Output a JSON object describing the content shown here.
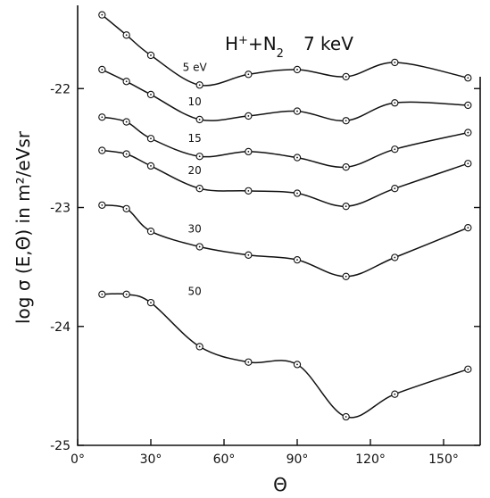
{
  "chart_data": {
    "type": "line",
    "title_main": "H",
    "title_sup": "+",
    "title_mid": "+N",
    "title_sub": "2",
    "title_energy": "7 keV",
    "ylabel": "log σ (E,Θ) in m²/eVsr",
    "xlabel": "Θ",
    "xlim": [
      0,
      165
    ],
    "ylim": [
      -25,
      -21.3
    ],
    "x_ticks": [
      0,
      30,
      60,
      90,
      120,
      150
    ],
    "x_tick_labels": [
      "0°",
      "30°",
      "60°",
      "90°",
      "120°",
      "150°"
    ],
    "y_ticks": [
      -22,
      -23,
      -24,
      -25
    ],
    "y_tick_labels": [
      "-22",
      "-23",
      "-24",
      "-25"
    ],
    "x": [
      10,
      20,
      30,
      50,
      70,
      90,
      110,
      130,
      160
    ],
    "series": [
      {
        "name": "5 eV",
        "label_x": 48,
        "values": [
          -21.38,
          -21.55,
          -21.72,
          -21.97,
          -21.88,
          -21.84,
          -21.9,
          -21.78,
          -21.91
        ]
      },
      {
        "name": "10",
        "label_x": 48,
        "values": [
          -21.84,
          -21.94,
          -22.05,
          -22.26,
          -22.23,
          -22.19,
          -22.27,
          -22.12,
          -22.14
        ]
      },
      {
        "name": "15",
        "label_x": 48,
        "values": [
          -22.24,
          -22.28,
          -22.42,
          -22.57,
          -22.53,
          -22.58,
          -22.66,
          -22.51,
          -22.37
        ]
      },
      {
        "name": "20",
        "label_x": 48,
        "values": [
          -22.52,
          -22.55,
          -22.65,
          -22.84,
          -22.86,
          -22.88,
          -22.99,
          -22.84,
          -22.63
        ]
      },
      {
        "name": "30",
        "label_x": 48,
        "values": [
          -22.98,
          -23.01,
          -23.2,
          -23.33,
          -23.4,
          -23.44,
          -23.58,
          -23.42,
          -23.17
        ]
      },
      {
        "name": "50",
        "label_x": 48,
        "values": [
          -23.73,
          -23.73,
          -23.8,
          -24.17,
          -24.3,
          -24.32,
          -24.76,
          -24.57,
          -24.36
        ]
      }
    ]
  }
}
